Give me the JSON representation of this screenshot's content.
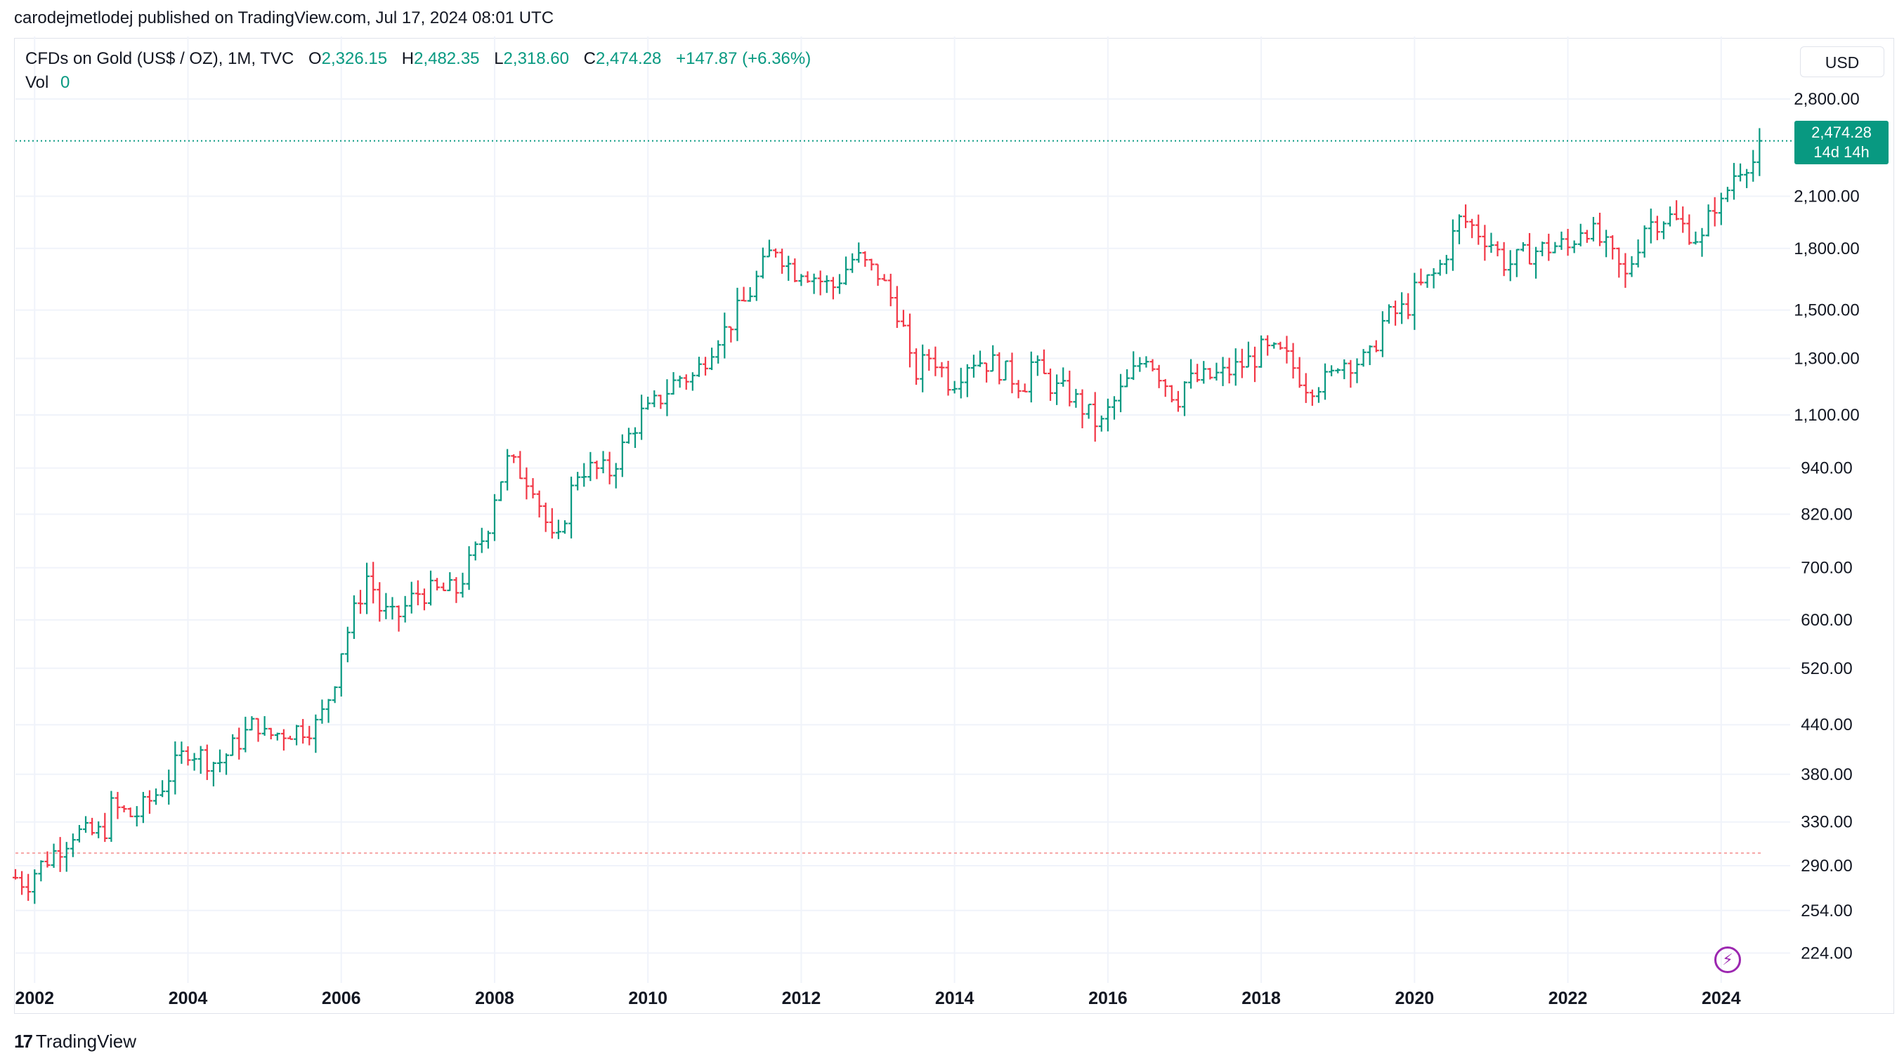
{
  "header": {
    "published_line": "carodejmetlodej published on TradingView.com, Jul 17, 2024 08:01 UTC"
  },
  "legend": {
    "symbol": "CFDs on Gold (US$ / OZ), 1M, TVC",
    "open_label": "O",
    "open_value": "2,326.15",
    "high_label": "H",
    "high_value": "2,482.35",
    "low_label": "L",
    "low_value": "2,318.60",
    "close_label": "C",
    "close_value": "2,474.28",
    "change": "+147.87 (+6.36%)",
    "vol_label": "Vol",
    "vol_value": "0"
  },
  "currency_button": "USD",
  "last_price_tag": {
    "price": "2,474.28",
    "countdown": "14d 14h"
  },
  "footer": {
    "brand": "TradingView",
    "logo_icon": "tradingview-logo-icon"
  },
  "colors": {
    "up": "#089981",
    "down": "#f23645",
    "grid": "#f0f3fa",
    "text": "#131722",
    "accent": "#9c27b0"
  },
  "chart_data": {
    "type": "ohlc",
    "interval": "1M",
    "scale": "log",
    "ylim": [
      205,
      3100
    ],
    "xlim": [
      2001.75,
      2024.9
    ],
    "y_ticks": [
      {
        "value": 224,
        "label": "224.00"
      },
      {
        "value": 254,
        "label": "254.00"
      },
      {
        "value": 290,
        "label": "290.00"
      },
      {
        "value": 330,
        "label": "330.00"
      },
      {
        "value": 380,
        "label": "380.00"
      },
      {
        "value": 440,
        "label": "440.00"
      },
      {
        "value": 520,
        "label": "520.00"
      },
      {
        "value": 600,
        "label": "600.00"
      },
      {
        "value": 700,
        "label": "700.00"
      },
      {
        "value": 820,
        "label": "820.00"
      },
      {
        "value": 940,
        "label": "940.00"
      },
      {
        "value": 1100,
        "label": "1,100.00"
      },
      {
        "value": 1300,
        "label": "1,300.00"
      },
      {
        "value": 1500,
        "label": "1,500.00"
      },
      {
        "value": 1800,
        "label": "1,800.00"
      },
      {
        "value": 2100,
        "label": "2,100.00"
      },
      {
        "value": 2800,
        "label": "2,800.00"
      }
    ],
    "x_ticks": [
      {
        "value": 2002,
        "label": "2002"
      },
      {
        "value": 2004,
        "label": "2004"
      },
      {
        "value": 2006,
        "label": "2006"
      },
      {
        "value": 2008,
        "label": "2008"
      },
      {
        "value": 2010,
        "label": "2010"
      },
      {
        "value": 2012,
        "label": "2012"
      },
      {
        "value": 2014,
        "label": "2014"
      },
      {
        "value": 2016,
        "label": "2016"
      },
      {
        "value": 2018,
        "label": "2018"
      },
      {
        "value": 2020,
        "label": "2020"
      },
      {
        "value": 2022,
        "label": "2022"
      },
      {
        "value": 2024,
        "label": "2024"
      }
    ],
    "last_close": 2474.28,
    "reference_line": 301,
    "anchors": [
      [
        2001.75,
        280
      ],
      [
        2001.9,
        275
      ],
      [
        2002.0,
        285
      ],
      [
        2002.4,
        312
      ],
      [
        2002.5,
        320
      ],
      [
        2002.7,
        318
      ],
      [
        2002.9,
        320
      ],
      [
        2003.0,
        345
      ],
      [
        2003.3,
        335
      ],
      [
        2003.6,
        360
      ],
      [
        2003.9,
        398
      ],
      [
        2004.0,
        410
      ],
      [
        2004.3,
        395
      ],
      [
        2004.4,
        393
      ],
      [
        2004.9,
        445
      ],
      [
        2005.0,
        425
      ],
      [
        2005.3,
        432
      ],
      [
        2005.7,
        440
      ],
      [
        2005.9,
        498
      ],
      [
        2006.0,
        550
      ],
      [
        2006.35,
        690
      ],
      [
        2006.5,
        620
      ],
      [
        2006.7,
        600
      ],
      [
        2006.9,
        635
      ],
      [
        2007.0,
        650
      ],
      [
        2007.5,
        655
      ],
      [
        2007.9,
        785
      ],
      [
        2008.0,
        870
      ],
      [
        2008.17,
        960
      ],
      [
        2008.5,
        900
      ],
      [
        2008.8,
        730
      ],
      [
        2008.95,
        850
      ],
      [
        2009.1,
        940
      ],
      [
        2009.5,
        930
      ],
      [
        2009.9,
        1100
      ],
      [
        2010.0,
        1110
      ],
      [
        2010.4,
        1230
      ],
      [
        2010.6,
        1230
      ],
      [
        2010.9,
        1390
      ],
      [
        2011.0,
        1410
      ],
      [
        2011.3,
        1560
      ],
      [
        2011.65,
        1820
      ],
      [
        2011.9,
        1680
      ],
      [
        2012.0,
        1700
      ],
      [
        2012.4,
        1600
      ],
      [
        2012.7,
        1760
      ],
      [
        2012.9,
        1690
      ],
      [
        2013.0,
        1670
      ],
      [
        2013.3,
        1470
      ],
      [
        2013.45,
        1230
      ],
      [
        2013.7,
        1320
      ],
      [
        2013.95,
        1205
      ],
      [
        2014.2,
        1300
      ],
      [
        2014.5,
        1280
      ],
      [
        2014.9,
        1200
      ],
      [
        2015.0,
        1280
      ],
      [
        2015.3,
        1190
      ],
      [
        2015.5,
        1170
      ],
      [
        2015.9,
        1060
      ],
      [
        2016.0,
        1110
      ],
      [
        2016.5,
        1320
      ],
      [
        2016.9,
        1150
      ],
      [
        2017.0,
        1210
      ],
      [
        2017.5,
        1240
      ],
      [
        2017.9,
        1300
      ],
      [
        2018.0,
        1330
      ],
      [
        2018.3,
        1310
      ],
      [
        2018.6,
        1200
      ],
      [
        2018.9,
        1220
      ],
      [
        2019.0,
        1290
      ],
      [
        2019.4,
        1290
      ],
      [
        2019.6,
        1460
      ],
      [
        2019.9,
        1510
      ],
      [
        2020.0,
        1580
      ],
      [
        2020.3,
        1680
      ],
      [
        2020.6,
        1970
      ],
      [
        2020.9,
        1870
      ],
      [
        2021.0,
        1830
      ],
      [
        2021.2,
        1710
      ],
      [
        2021.5,
        1780
      ],
      [
        2021.9,
        1820
      ],
      [
        2022.0,
        1800
      ],
      [
        2022.2,
        1940
      ],
      [
        2022.5,
        1800
      ],
      [
        2022.75,
        1650
      ],
      [
        2022.9,
        1810
      ],
      [
        2023.0,
        1930
      ],
      [
        2023.3,
        1980
      ],
      [
        2023.5,
        1920
      ],
      [
        2023.75,
        1840
      ],
      [
        2023.9,
        2060
      ],
      [
        2024.0,
        2040
      ],
      [
        2024.15,
        2230
      ],
      [
        2024.3,
        2330
      ],
      [
        2024.42,
        2326
      ],
      [
        2024.5,
        2474.28
      ]
    ]
  }
}
